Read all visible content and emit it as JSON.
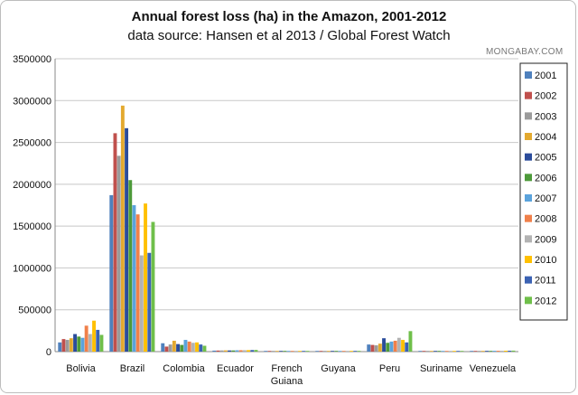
{
  "chart_data": {
    "type": "bar",
    "title": "Annual forest loss (ha) in the Amazon, 2001-2012",
    "subtitle": "data source: Hansen et al 2013 / Global Forest Watch",
    "watermark": "MONGABAY.COM",
    "xlabel": "",
    "ylabel": "",
    "ylim": [
      0,
      3500000
    ],
    "yticks": [
      0,
      500000,
      1000000,
      1500000,
      2000000,
      2500000,
      3000000,
      3500000
    ],
    "grid": true,
    "legend_position": "right",
    "categories": [
      "Bolivia",
      "Brazil",
      "Colombia",
      "Ecuador",
      "French Guiana",
      "Guyana",
      "Peru",
      "Suriname",
      "Venezuela"
    ],
    "series": [
      {
        "name": "2001",
        "color": "#4f81bd",
        "values": [
          110000,
          1870000,
          100000,
          12000,
          3000,
          6000,
          85000,
          3000,
          8000
        ]
      },
      {
        "name": "2002",
        "color": "#c0504d",
        "values": [
          150000,
          2610000,
          60000,
          13000,
          3000,
          6000,
          80000,
          3000,
          8000
        ]
      },
      {
        "name": "2003",
        "color": "#9b9b9b",
        "values": [
          140000,
          2340000,
          85000,
          14000,
          3000,
          6000,
          75000,
          3000,
          8000
        ]
      },
      {
        "name": "2004",
        "color": "#e3a92f",
        "values": [
          160000,
          2940000,
          130000,
          15000,
          4000,
          7000,
          95000,
          4000,
          9000
        ]
      },
      {
        "name": "2005",
        "color": "#2b4c9b",
        "values": [
          210000,
          2670000,
          90000,
          14000,
          4000,
          7000,
          160000,
          4000,
          9000
        ]
      },
      {
        "name": "2006",
        "color": "#4d9a3a",
        "values": [
          180000,
          2050000,
          80000,
          14000,
          4000,
          7000,
          105000,
          4000,
          9000
        ]
      },
      {
        "name": "2007",
        "color": "#5ba3dc",
        "values": [
          165000,
          1750000,
          140000,
          16000,
          4000,
          8000,
          120000,
          4000,
          10000
        ]
      },
      {
        "name": "2008",
        "color": "#f0804a",
        "values": [
          310000,
          1640000,
          120000,
          17000,
          4000,
          8000,
          130000,
          4000,
          10000
        ]
      },
      {
        "name": "2009",
        "color": "#b3b3b3",
        "values": [
          210000,
          1150000,
          105000,
          17000,
          4000,
          8000,
          165000,
          4000,
          10000
        ]
      },
      {
        "name": "2010",
        "color": "#ffc000",
        "values": [
          370000,
          1770000,
          110000,
          18000,
          5000,
          8000,
          140000,
          5000,
          11000
        ]
      },
      {
        "name": "2011",
        "color": "#3b62b3",
        "values": [
          260000,
          1180000,
          85000,
          19000,
          5000,
          9000,
          110000,
          5000,
          11000
        ]
      },
      {
        "name": "2012",
        "color": "#6fbf4a",
        "values": [
          200000,
          1550000,
          70000,
          20000,
          5000,
          9000,
          245000,
          5000,
          12000
        ]
      }
    ]
  }
}
